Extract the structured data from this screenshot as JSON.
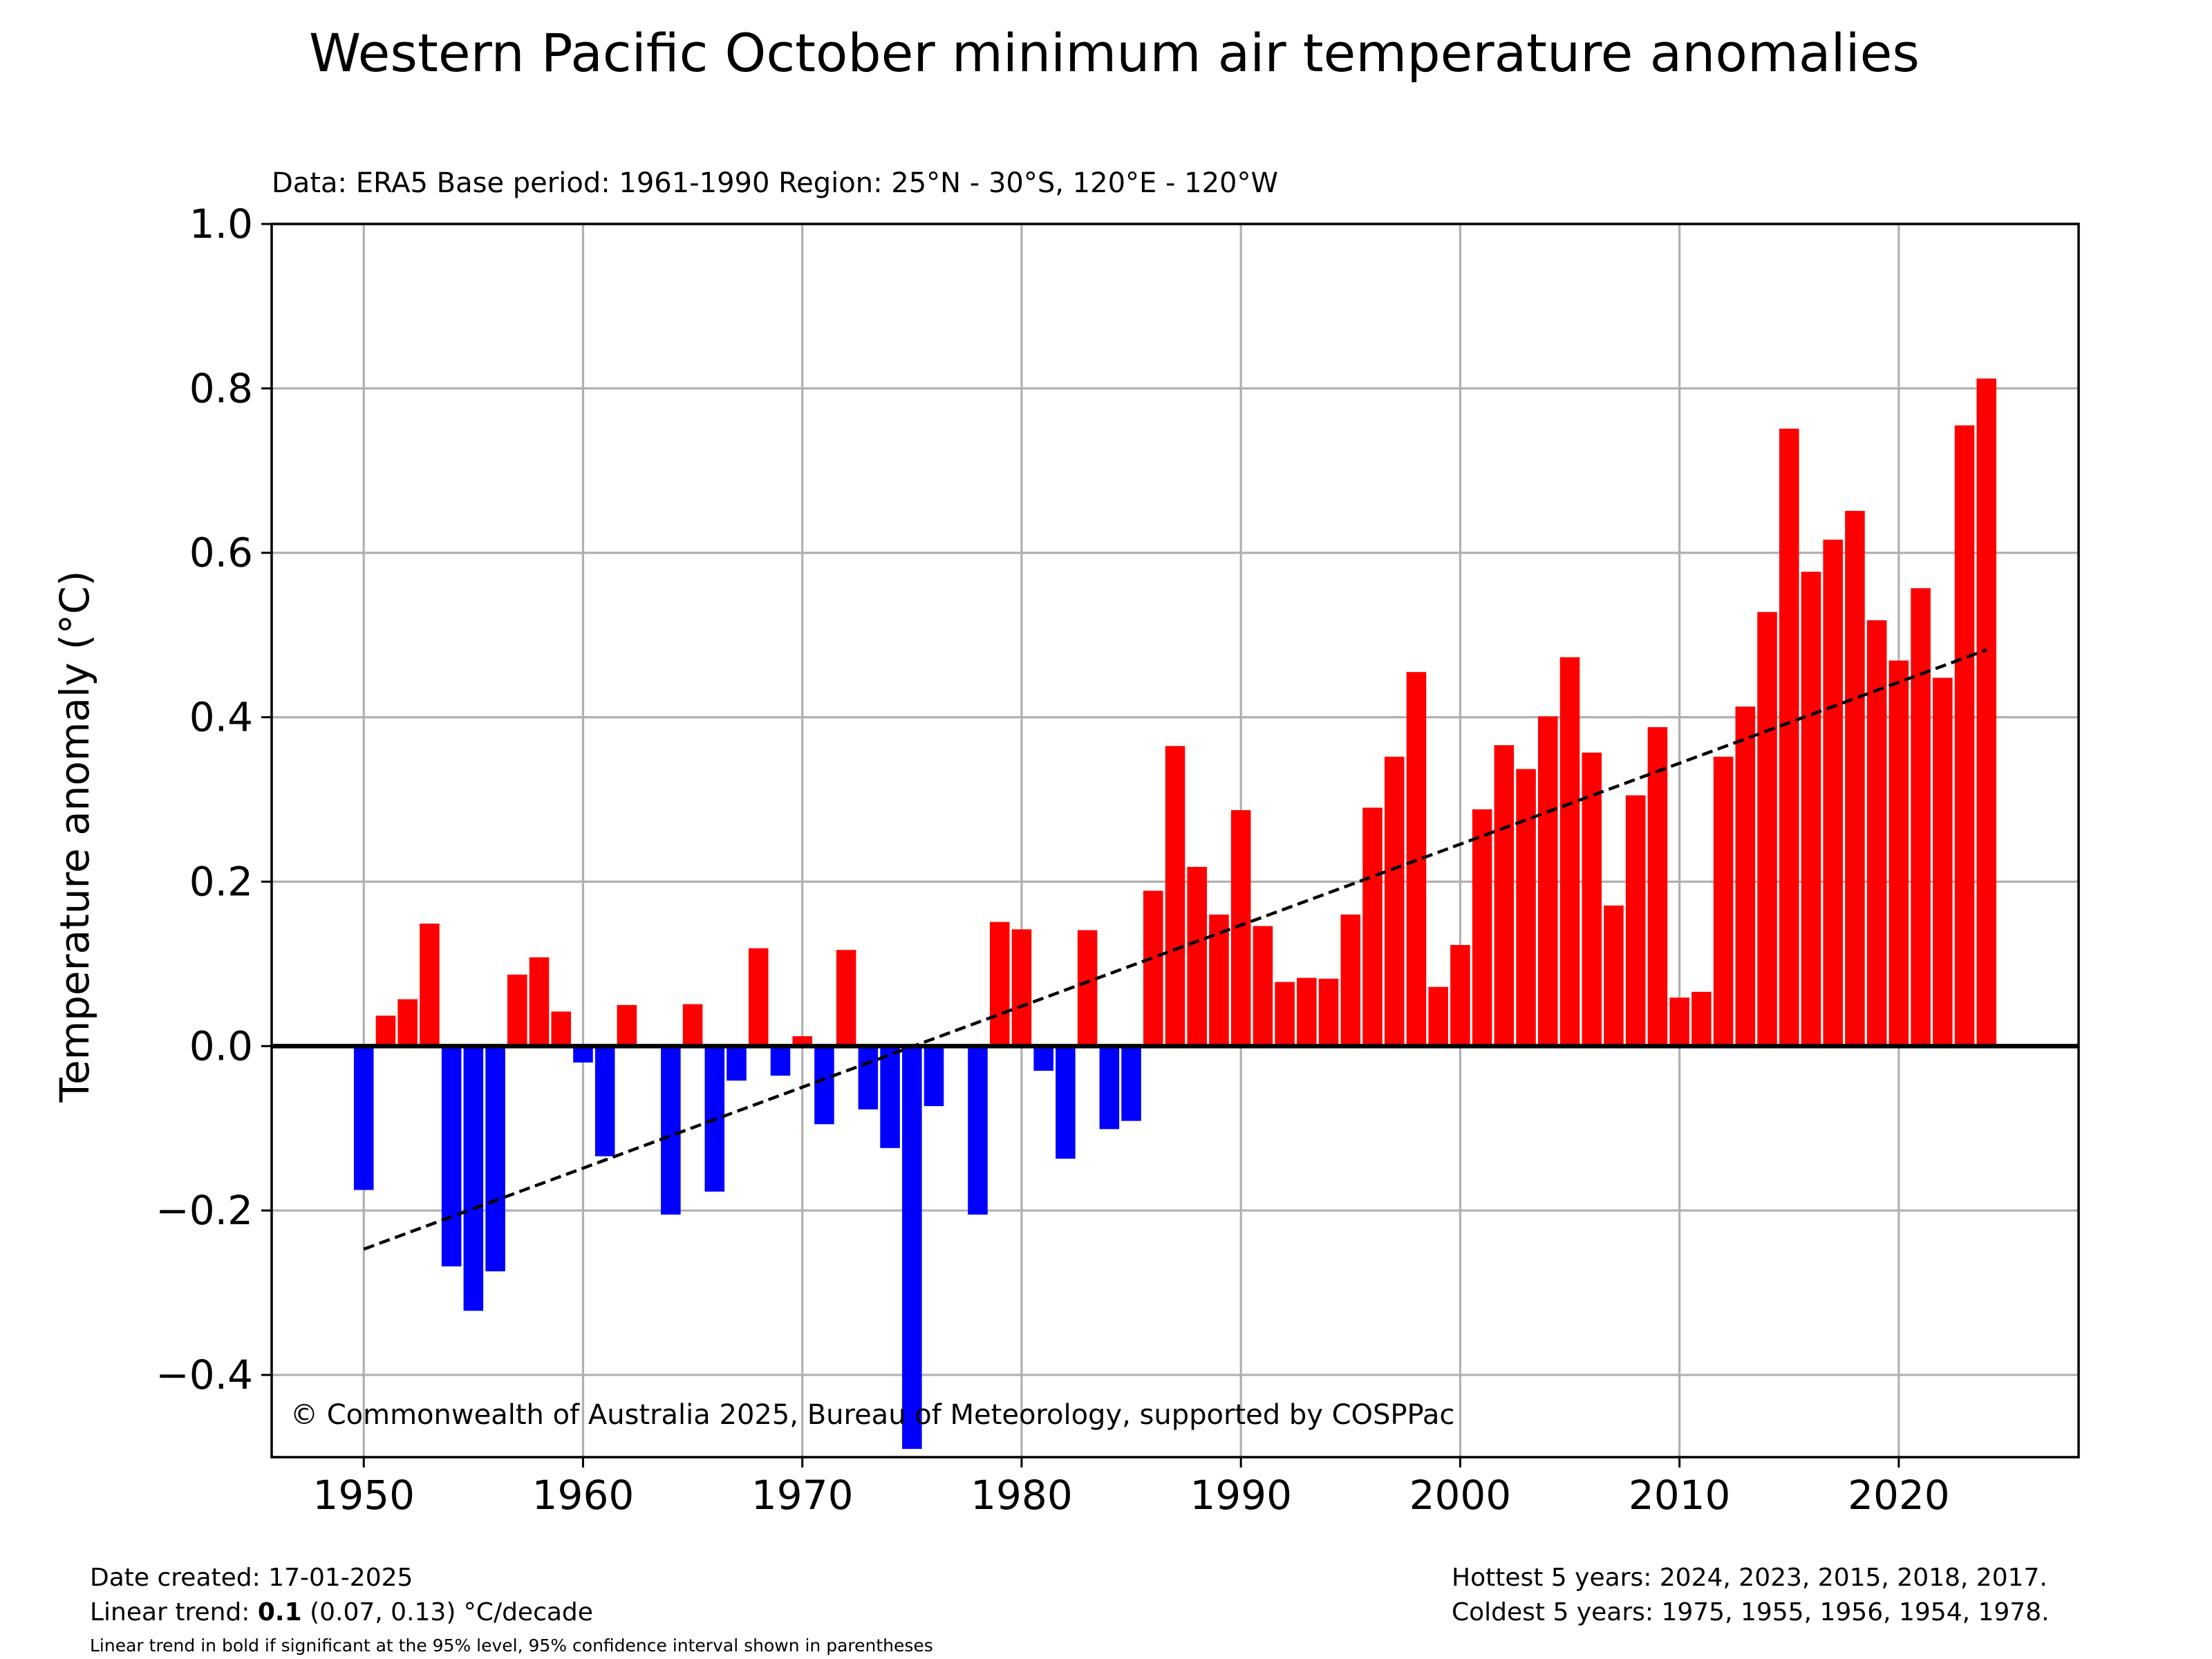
{
  "chart_data": {
    "type": "bar",
    "title": "Western Pacific October minimum air temperature anomalies",
    "subtitle": "Data: ERA5  Base period: 1961-1990  Region: 25°N - 30°S, 120°E - 120°W",
    "xlabel": "",
    "ylabel": "Temperature anomaly (°C)",
    "xlim": [
      1945.8,
      2028.2
    ],
    "ylim": [
      -0.5,
      1.0
    ],
    "x_ticks": [
      1950,
      1960,
      1970,
      1980,
      1990,
      2000,
      2010,
      2020
    ],
    "y_ticks": [
      -0.4,
      -0.2,
      0.0,
      0.2,
      0.4,
      0.6,
      0.8,
      1.0
    ],
    "y_tick_labels": [
      "−0.4",
      "−0.2",
      "0.0",
      "0.2",
      "0.4",
      "0.6",
      "0.8",
      "1.0"
    ],
    "grid": true,
    "positive_color": "#ff0000",
    "negative_color": "#0000ff",
    "years": [
      1950,
      1951,
      1952,
      1953,
      1954,
      1955,
      1956,
      1957,
      1958,
      1959,
      1960,
      1961,
      1962,
      1963,
      1964,
      1965,
      1966,
      1967,
      1968,
      1969,
      1970,
      1971,
      1972,
      1973,
      1974,
      1975,
      1976,
      1977,
      1978,
      1979,
      1980,
      1981,
      1982,
      1983,
      1984,
      1985,
      1986,
      1987,
      1988,
      1989,
      1990,
      1991,
      1992,
      1993,
      1994,
      1995,
      1996,
      1997,
      1998,
      1999,
      2000,
      2001,
      2002,
      2003,
      2004,
      2005,
      2006,
      2007,
      2008,
      2009,
      2010,
      2011,
      2012,
      2013,
      2014,
      2015,
      2016,
      2017,
      2018,
      2019,
      2020,
      2021,
      2022,
      2023,
      2024
    ],
    "values": [
      -0.175,
      0.037,
      0.057,
      0.149,
      -0.268,
      -0.322,
      -0.274,
      0.087,
      0.108,
      0.042,
      -0.02,
      -0.134,
      0.05,
      0.0,
      -0.205,
      0.051,
      -0.177,
      -0.042,
      0.119,
      -0.036,
      0.012,
      -0.095,
      0.117,
      -0.077,
      -0.124,
      -0.49,
      -0.073,
      0.0,
      -0.205,
      0.151,
      0.142,
      -0.03,
      -0.137,
      0.141,
      -0.101,
      -0.091,
      0.189,
      0.365,
      0.218,
      0.16,
      0.287,
      0.146,
      0.078,
      0.083,
      0.082,
      0.16,
      0.29,
      0.352,
      0.455,
      0.072,
      0.123,
      0.288,
      0.366,
      0.337,
      0.401,
      0.473,
      0.357,
      0.171,
      0.305,
      0.388,
      0.059,
      0.066,
      0.352,
      0.413,
      0.528,
      0.751,
      0.577,
      0.616,
      0.651,
      0.518,
      0.469,
      0.557,
      0.448,
      0.755,
      0.812
    ],
    "trend_line": {
      "x": [
        1950,
        2024
      ],
      "y": [
        -0.247,
        0.482
      ],
      "style": "dashed"
    },
    "annotation": "© Commonwealth of Australia 2025, Bureau of Meteorology, supported by COSPPac"
  },
  "footer": {
    "date_created": "Date created: 17-01-2025",
    "trend_prefix": "Linear trend: ",
    "trend_value": "0.1",
    "trend_suffix": " (0.07, 0.13) °C/decade",
    "trend_note": "Linear trend in bold if significant at the 95% level, 95% confidence interval shown in parentheses",
    "hottest": "Hottest 5 years: 2024, 2023, 2015, 2018, 2017.",
    "coldest": "Coldest 5 years: 1975, 1955, 1956, 1954, 1978."
  }
}
